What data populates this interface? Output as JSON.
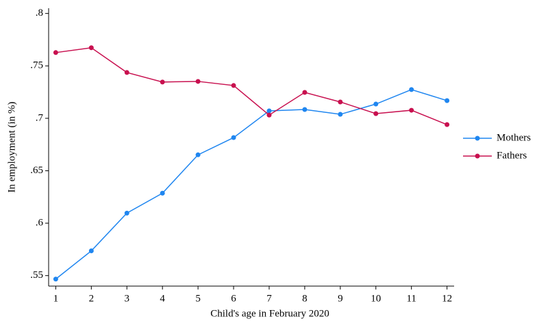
{
  "chart_data": {
    "type": "line",
    "x_label": "Child's age in February 2020",
    "y_label": "In employment (in %)",
    "x": [
      1,
      2,
      3,
      4,
      5,
      6,
      7,
      8,
      9,
      10,
      11,
      12
    ],
    "xlim": [
      0.8,
      12.2
    ],
    "xticks": [
      1,
      2,
      3,
      4,
      5,
      6,
      7,
      8,
      9,
      10,
      11,
      12
    ],
    "ylim": [
      0.54,
      0.805
    ],
    "yticks": [
      {
        "value": 0.55,
        "label": ".55"
      },
      {
        "value": 0.6,
        "label": ".6"
      },
      {
        "value": 0.65,
        "label": ".65"
      },
      {
        "value": 0.7,
        "label": ".7"
      },
      {
        "value": 0.75,
        "label": ".75"
      },
      {
        "value": 0.8,
        "label": ".8"
      }
    ],
    "legend": "right",
    "series": [
      {
        "name": "Mothers",
        "color": "#1f86f0",
        "values": [
          0.5467,
          0.5736,
          0.6096,
          0.6286,
          0.6652,
          0.6816,
          0.7071,
          0.7084,
          0.7038,
          0.7136,
          0.7274,
          0.7169
        ]
      },
      {
        "name": "Fathers",
        "color": "#c8104f",
        "values": [
          0.7627,
          0.7673,
          0.7437,
          0.7346,
          0.7352,
          0.7313,
          0.7031,
          0.7247,
          0.7156,
          0.7045,
          0.7077,
          0.694
        ]
      }
    ]
  }
}
